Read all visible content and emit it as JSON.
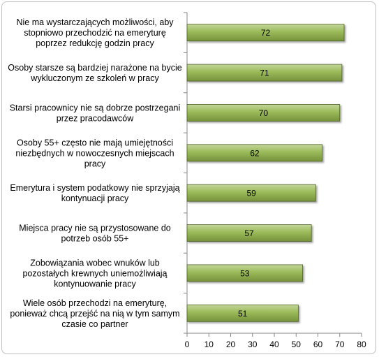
{
  "chart_data": {
    "type": "bar",
    "orientation": "horizontal",
    "categories": [
      [
        "Nie ma wystarczających możliwości, aby",
        "stopniowo przechodzić na emeryturę",
        "poprzez redukcję godzin pracy"
      ],
      [
        "Osoby starsze są bardziej narażone na bycie",
        "wykluczonym ze szkoleń w pracy"
      ],
      [
        "Starsi pracownicy nie są dobrze postrzegani",
        "przez pracodawców"
      ],
      [
        "Osoby 55+ często nie mają umiejętności",
        "niezbędnych w nowoczesnych miejscach",
        "pracy"
      ],
      [
        "Emerytura i system podatkowy nie sprzyjają",
        "kontynuacji pracy"
      ],
      [
        "Miejsca pracy nie są przystosowane do",
        "potrzeb osób 55+"
      ],
      [
        "Zobowiązania wobec wnuków lub",
        "pozostałych krewnych uniemożliwiają",
        "kontynuowanie pracy"
      ],
      [
        "Wiele osób przechodzi na emeryturę,",
        "ponieważ chcą przejść na nią w tym samym",
        "czasie co partner"
      ]
    ],
    "values": [
      72,
      71,
      70,
      62,
      59,
      57,
      53,
      51
    ],
    "data_labels": [
      "72",
      "71",
      "70",
      "62",
      "59",
      "57",
      "53",
      "51"
    ],
    "xlim": [
      0,
      80
    ],
    "x_ticks": [
      "0",
      "10",
      "20",
      "30",
      "40",
      "50",
      "60",
      "70",
      "80"
    ],
    "x_tick_values": [
      0,
      10,
      20,
      30,
      40,
      50,
      60,
      70,
      80
    ],
    "grid": false,
    "legend": "none",
    "bar_color": "#9bbb59",
    "bar_color_light": "#c3d69b",
    "bar_color_dark": "#76923c",
    "bar_border": "#4f6228",
    "title": "",
    "xlabel": "",
    "ylabel": ""
  }
}
